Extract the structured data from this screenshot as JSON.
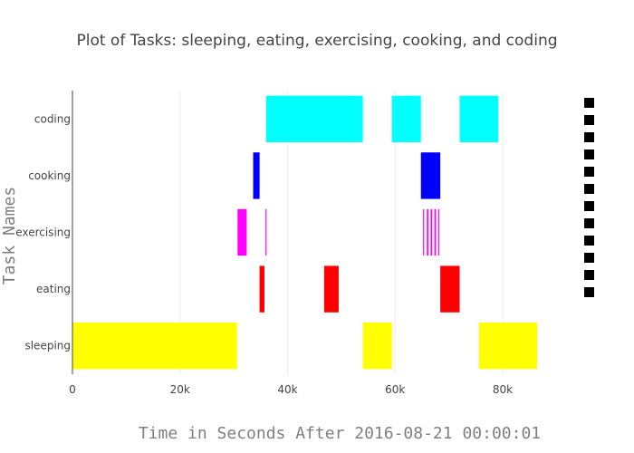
{
  "chart_data": {
    "type": "gantt",
    "title": "Plot of Tasks: sleeping, eating, exercising, cooking, and coding",
    "xlabel": "Time in Seconds After 2016-08-21 00:00:01",
    "ylabel": "Task Names",
    "xlim": [
      0,
      86400
    ],
    "x_ticks": [
      {
        "value": 0,
        "label": "0"
      },
      {
        "value": 20000,
        "label": "20k"
      },
      {
        "value": 40000,
        "label": "40k"
      },
      {
        "value": 60000,
        "label": "60k"
      },
      {
        "value": 80000,
        "label": "80k"
      }
    ],
    "grid": true,
    "legend_markers": 12,
    "legend_color": "#000000",
    "tasks": [
      {
        "name": "sleeping",
        "color": "#ffff00",
        "intervals": [
          [
            0,
            30600
          ],
          [
            54000,
            59400
          ],
          [
            75600,
            86400
          ]
        ]
      },
      {
        "name": "eating",
        "color": "#ff0000",
        "intervals": [
          [
            34800,
            35700
          ],
          [
            46800,
            49500
          ],
          [
            68400,
            72000
          ]
        ]
      },
      {
        "name": "exercising",
        "color": "#ff00ff",
        "intervals": [
          [
            30700,
            32400
          ],
          [
            35900,
            36100
          ],
          [
            65200,
            65400
          ],
          [
            65900,
            66200
          ],
          [
            66600,
            66900
          ],
          [
            67300,
            67600
          ],
          [
            68000,
            68200
          ]
        ]
      },
      {
        "name": "cooking",
        "color": "#0000ff",
        "intervals": [
          [
            33600,
            34800
          ],
          [
            64800,
            68400
          ]
        ]
      },
      {
        "name": "coding",
        "color": "#00ffff",
        "intervals": [
          [
            36000,
            54000
          ],
          [
            59400,
            64800
          ],
          [
            72000,
            79200
          ]
        ]
      }
    ]
  }
}
